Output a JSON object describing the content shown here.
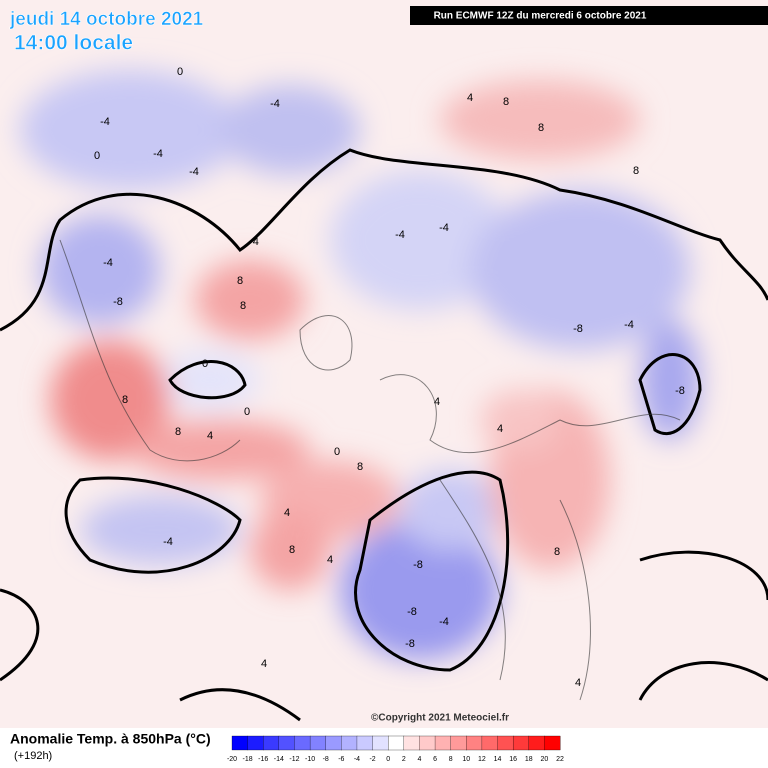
{
  "header": {
    "date": "jeudi 14 octobre 2021",
    "time": "14:00 locale",
    "run": "Run ECMWF 12Z du mercredi 6 octobre 2021"
  },
  "map": {
    "contour_labels": [
      "0",
      "-4",
      "-4",
      "0",
      "-4",
      "-4",
      "-8",
      "-4",
      "8",
      "8",
      "8",
      "4",
      "0",
      "0",
      "8",
      "4",
      "8",
      "4",
      "-4",
      "-4",
      "-4",
      "-8",
      "-4",
      "4",
      "8",
      "8",
      "8",
      "8",
      "-8",
      "-8",
      "-8",
      "-4",
      "-8",
      "4",
      "4",
      "4",
      "8",
      "0",
      "4",
      "-4"
    ],
    "copyright": "©Copyright 2021 Meteociel.fr"
  },
  "legend": {
    "title": "Anomalie Temp. à 850hPa (°C)",
    "lead": "(+192h)",
    "ticks": [
      -20,
      -18,
      -16,
      -14,
      -12,
      -10,
      -8,
      -6,
      -4,
      -2,
      0,
      2,
      4,
      6,
      8,
      10,
      12,
      14,
      16,
      18,
      20,
      22
    ],
    "colors": [
      "#0000ff",
      "#1c1cff",
      "#3a3aff",
      "#5252ff",
      "#6a6aff",
      "#8282ff",
      "#9a9aff",
      "#b2b2ff",
      "#cacaff",
      "#e2e2ff",
      "#ffffff",
      "#ffe2e2",
      "#ffcaca",
      "#ffb2b2",
      "#ff9a9a",
      "#ff8282",
      "#ff6a6a",
      "#ff5252",
      "#ff3a3a",
      "#ff1c1c",
      "#ff0000"
    ]
  }
}
